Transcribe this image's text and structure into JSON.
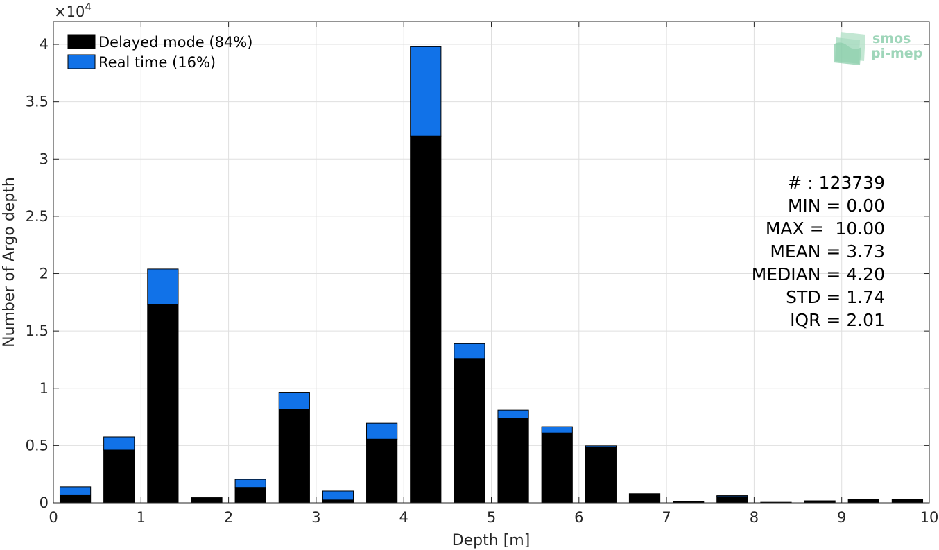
{
  "chart_data": {
    "type": "bar",
    "stacked": true,
    "xlabel": "Depth [m]",
    "ylabel": "Number of Argo depth",
    "y_exponent_label": "×10",
    "y_exponent_power": "4",
    "xlim": [
      0,
      10
    ],
    "ylim": [
      0,
      42000
    ],
    "xticks": [
      0,
      1,
      2,
      3,
      4,
      5,
      6,
      7,
      8,
      9,
      10
    ],
    "yticks": [
      0,
      5000,
      10000,
      15000,
      20000,
      25000,
      30000,
      35000,
      40000
    ],
    "ytick_labels": [
      "0",
      "0.5",
      "1",
      "1.5",
      "2",
      "2.5",
      "3",
      "3.5",
      "4"
    ],
    "grid": true,
    "bar_centers": [
      0.25,
      0.75,
      1.25,
      1.75,
      2.25,
      2.75,
      3.25,
      3.75,
      4.25,
      4.75,
      5.25,
      5.75,
      6.25,
      6.75,
      7.25,
      7.75,
      8.25,
      8.75,
      9.25,
      9.75
    ],
    "bin_width": 0.5,
    "series": [
      {
        "name": "Delayed mode (84%)",
        "color": "#000000",
        "values": [
          700,
          4600,
          17300,
          450,
          1350,
          8200,
          250,
          5550,
          32000,
          12600,
          7400,
          6100,
          4850,
          800,
          120,
          550,
          50,
          180,
          330,
          330
        ]
      },
      {
        "name": "Real time (16%)",
        "color": "#1172e8",
        "values": [
          700,
          1150,
          3100,
          0,
          700,
          1450,
          780,
          1400,
          7800,
          1300,
          700,
          550,
          120,
          0,
          0,
          80,
          0,
          0,
          0,
          0
        ]
      }
    ],
    "legend_position": "top-left",
    "stats": [
      "# : 123739",
      "MIN = 0.00",
      "MAX =  10.00",
      "MEAN = 3.73",
      "MEDIAN = 4.20",
      "STD = 1.74",
      "IQR = 2.01"
    ]
  },
  "logo": {
    "line1": "smos",
    "line2": "pi-mep",
    "color": "#8fcfae"
  }
}
